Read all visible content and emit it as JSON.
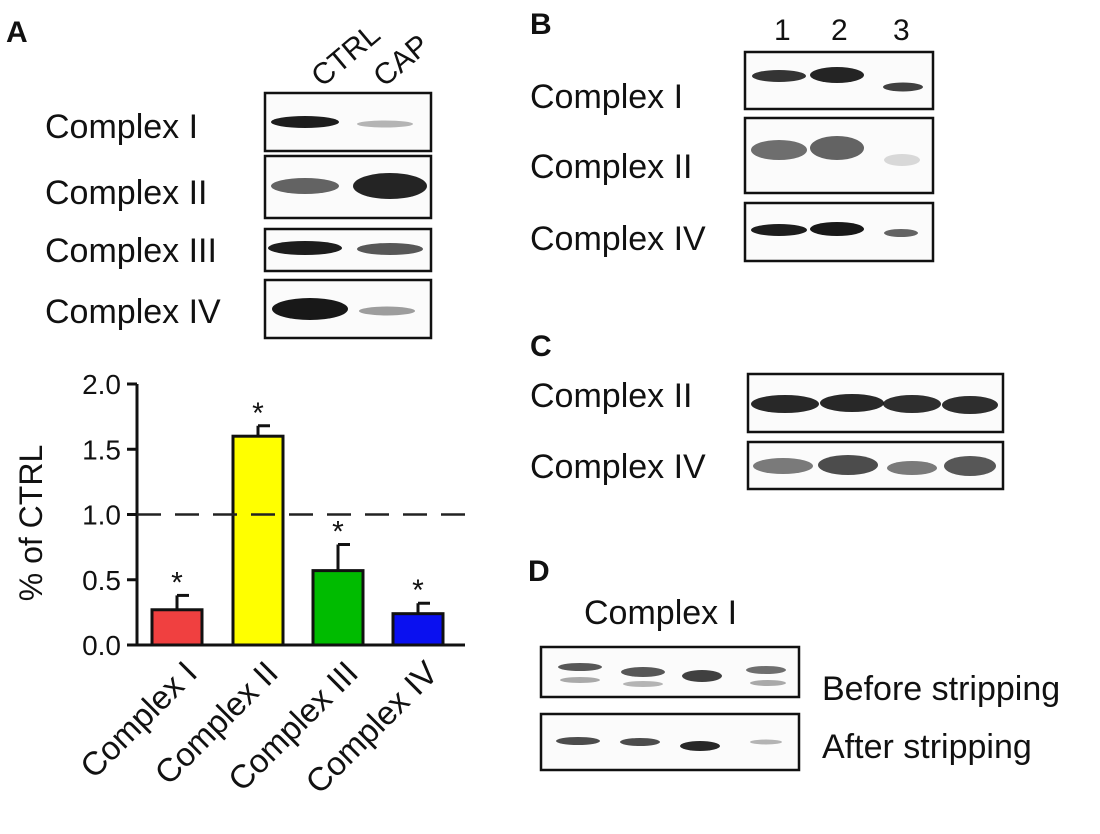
{
  "panels": {
    "a": {
      "letter": "A",
      "lanes": [
        "CTRL",
        "CAP"
      ],
      "rows": [
        "Complex I",
        "Complex II",
        "Complex III",
        "Complex IV"
      ]
    },
    "b": {
      "letter": "B",
      "lanes": [
        "1",
        "2",
        "3"
      ],
      "rows": [
        "Complex I",
        "Complex II",
        "Complex IV"
      ]
    },
    "c": {
      "letter": "C",
      "rows": [
        "Complex II",
        "Complex IV"
      ]
    },
    "d": {
      "letter": "D",
      "title": "Complex I",
      "rows": [
        "Before stripping",
        "After stripping"
      ]
    }
  },
  "chart_data": {
    "type": "bar",
    "categories": [
      "Complex I",
      "Complex II",
      "Complex III",
      "Complex IV"
    ],
    "values": [
      0.27,
      1.6,
      0.57,
      0.24
    ],
    "errors": [
      0.11,
      0.08,
      0.2,
      0.08
    ],
    "significance": [
      "*",
      "*",
      "*",
      "*"
    ],
    "colors": [
      "#f04040",
      "#ffff00",
      "#00bb00",
      "#0a10f0"
    ],
    "xlabel": "",
    "ylabel": "% of CTRL",
    "ylim": [
      0,
      2.0
    ],
    "yticks": [
      "0.0",
      "0.5",
      "1.0",
      "1.5",
      "2.0"
    ],
    "reference_line": 1.0,
    "grid": false,
    "legend": "none"
  }
}
